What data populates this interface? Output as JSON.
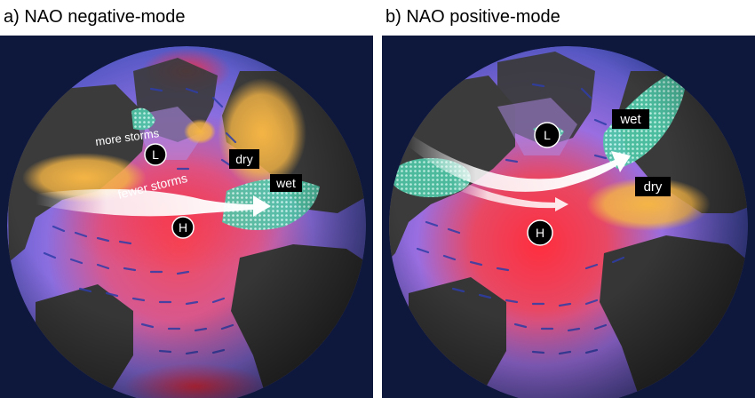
{
  "panels": [
    {
      "title": "a)  NAO negative-mode",
      "labels": {
        "more_storms": "more storms",
        "fewer_storms": "fewer storms",
        "low": "L",
        "high": "H",
        "dry": "dry",
        "wet": "wet"
      }
    },
    {
      "title": "b)  NAO positive-mode",
      "labels": {
        "low": "L",
        "high": "H",
        "dry": "dry",
        "wet": "wet"
      }
    }
  ],
  "colors": {
    "background": "#0c1430",
    "ocean": "#5a6ad8",
    "ocean_warm": "#e2374a",
    "land": "#3d3d3d",
    "dry_region": "#f2b64a",
    "wet_region": "#5fd8b8",
    "storm_track": "#ffffff",
    "pressure_marker": "#000000"
  }
}
